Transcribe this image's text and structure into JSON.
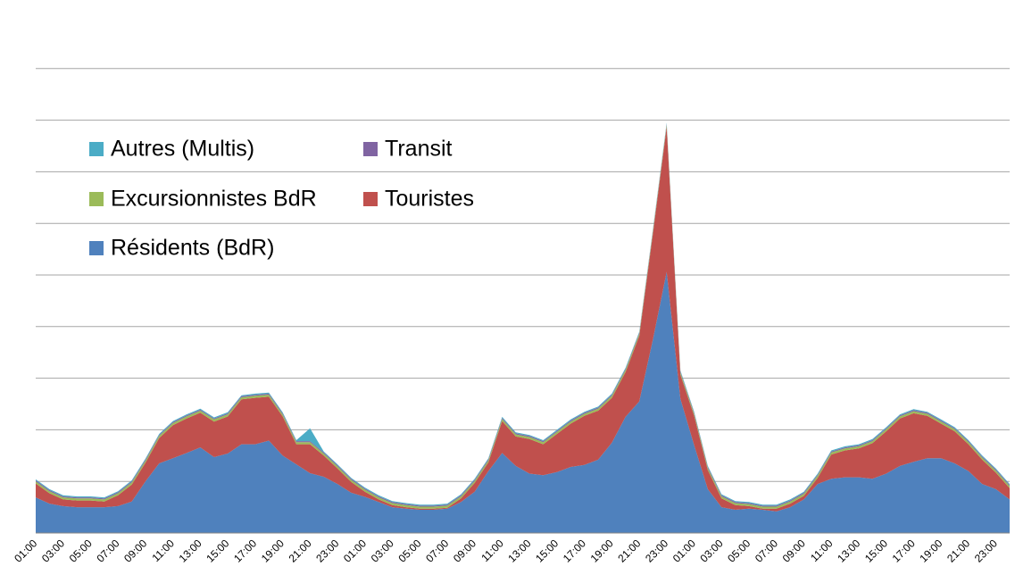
{
  "chart_data": {
    "type": "stacked_area",
    "categories": [
      "01:00",
      null,
      "03:00",
      null,
      "05:00",
      null,
      "07:00",
      null,
      "09:00",
      null,
      "11:00",
      null,
      "13:00",
      null,
      "15:00",
      null,
      "17:00",
      null,
      "19:00",
      null,
      "21:00",
      null,
      "23:00",
      null,
      "01:00",
      null,
      "03:00",
      null,
      "05:00",
      null,
      "07:00",
      null,
      "09:00",
      null,
      "11:00",
      null,
      "13:00",
      null,
      "15:00",
      null,
      "17:00",
      null,
      "19:00",
      null,
      "21:00",
      null,
      "23:00",
      null,
      "01:00",
      null,
      "03:00",
      null,
      "05:00",
      null,
      "07:00",
      null,
      "09:00",
      null,
      "11:00",
      null,
      "13:00",
      null,
      "15:00",
      null,
      "17:00",
      null,
      "19:00",
      null,
      "21:00",
      null,
      "23:00",
      null
    ],
    "series": [
      {
        "name": "Résidents (BdR)",
        "color": "#4f81bd",
        "values": [
          0.69,
          0.57,
          0.52,
          0.5,
          0.5,
          0.5,
          0.52,
          0.61,
          1.0,
          1.35,
          1.45,
          1.55,
          1.66,
          1.47,
          1.54,
          1.72,
          1.72,
          1.79,
          1.5,
          1.33,
          1.16,
          1.09,
          0.95,
          0.78,
          0.7,
          0.6,
          0.5,
          0.47,
          0.45,
          0.45,
          0.47,
          0.6,
          0.8,
          1.2,
          1.55,
          1.3,
          1.15,
          1.12,
          1.18,
          1.28,
          1.32,
          1.42,
          1.75,
          2.25,
          2.55,
          3.76,
          5.06,
          2.6,
          1.7,
          0.85,
          0.5,
          0.45,
          0.47,
          0.45,
          0.42,
          0.5,
          0.65,
          0.95,
          1.05,
          1.08,
          1.08,
          1.05,
          1.15,
          1.3,
          1.38,
          1.45,
          1.45,
          1.35,
          1.2,
          0.95,
          0.85,
          0.65
        ]
      },
      {
        "name": "Touristes",
        "color": "#c0504d",
        "values": [
          0.27,
          0.2,
          0.13,
          0.13,
          0.13,
          0.11,
          0.21,
          0.33,
          0.36,
          0.49,
          0.64,
          0.67,
          0.67,
          0.69,
          0.72,
          0.87,
          0.9,
          0.85,
          0.76,
          0.39,
          0.56,
          0.41,
          0.3,
          0.21,
          0.1,
          0.05,
          0.04,
          0.03,
          0.02,
          0.02,
          0.02,
          0.07,
          0.17,
          0.17,
          0.62,
          0.57,
          0.67,
          0.6,
          0.74,
          0.84,
          0.95,
          0.95,
          0.87,
          0.87,
          1.27,
          2.06,
          2.81,
          0.47,
          0.57,
          0.37,
          0.17,
          0.09,
          0.05,
          0.02,
          0.05,
          0.07,
          0.07,
          0.12,
          0.47,
          0.52,
          0.56,
          0.69,
          0.82,
          0.92,
          0.94,
          0.82,
          0.67,
          0.62,
          0.52,
          0.47,
          0.32,
          0.22
        ]
      },
      {
        "name": "Excursionnistes BdR",
        "color": "#9bbb59",
        "values": [
          0.04,
          0.04,
          0.04,
          0.04,
          0.04,
          0.04,
          0.04,
          0.04,
          0.04,
          0.04,
          0.04,
          0.04,
          0.04,
          0.04,
          0.04,
          0.04,
          0.04,
          0.04,
          0.04,
          0.04,
          0.04,
          0.04,
          0.04,
          0.04,
          0.04,
          0.04,
          0.04,
          0.04,
          0.04,
          0.04,
          0.04,
          0.04,
          0.04,
          0.04,
          0.04,
          0.04,
          0.04,
          0.04,
          0.04,
          0.04,
          0.04,
          0.04,
          0.04,
          0.04,
          0.04,
          0.04,
          0.04,
          0.04,
          0.04,
          0.04,
          0.04,
          0.04,
          0.04,
          0.04,
          0.04,
          0.04,
          0.04,
          0.04,
          0.04,
          0.04,
          0.04,
          0.04,
          0.04,
          0.04,
          0.04,
          0.04,
          0.04,
          0.04,
          0.04,
          0.04,
          0.04,
          0.04
        ]
      },
      {
        "name": "Transit",
        "color": "#8064a2",
        "values": [
          0.02,
          0.02,
          0.02,
          0.02,
          0.02,
          0.02,
          0.02,
          0.02,
          0.02,
          0.02,
          0.02,
          0.02,
          0.02,
          0.02,
          0.02,
          0.02,
          0.02,
          0.02,
          0.02,
          0.02,
          0.02,
          0.02,
          0.02,
          0.02,
          0.02,
          0.02,
          0.02,
          0.02,
          0.02,
          0.02,
          0.02,
          0.02,
          0.02,
          0.02,
          0.02,
          0.02,
          0.02,
          0.02,
          0.02,
          0.02,
          0.02,
          0.02,
          0.02,
          0.02,
          0.02,
          0.02,
          0.02,
          0.02,
          0.02,
          0.02,
          0.02,
          0.02,
          0.02,
          0.02,
          0.02,
          0.02,
          0.02,
          0.02,
          0.02,
          0.02,
          0.02,
          0.02,
          0.02,
          0.02,
          0.02,
          0.02,
          0.02,
          0.02,
          0.02,
          0.02,
          0.02,
          0.02
        ]
      },
      {
        "name": "Autres (Multis)",
        "color": "#4bacc6",
        "values": [
          0.02,
          0.02,
          0.02,
          0.02,
          0.02,
          0.02,
          0.02,
          0.02,
          0.02,
          0.02,
          0.02,
          0.02,
          0.02,
          0.02,
          0.02,
          0.02,
          0.02,
          0.02,
          0.02,
          0.02,
          0.25,
          0.02,
          0.02,
          0.02,
          0.02,
          0.02,
          0.02,
          0.02,
          0.02,
          0.02,
          0.02,
          0.02,
          0.02,
          0.02,
          0.02,
          0.02,
          0.02,
          0.02,
          0.02,
          0.02,
          0.02,
          0.02,
          0.02,
          0.02,
          0.02,
          0.02,
          0.02,
          0.02,
          0.02,
          0.02,
          0.02,
          0.02,
          0.02,
          0.02,
          0.02,
          0.02,
          0.02,
          0.02,
          0.02,
          0.02,
          0.02,
          0.02,
          0.02,
          0.02,
          0.02,
          0.02,
          0.02,
          0.02,
          0.02,
          0.02,
          0.02,
          0.02
        ]
      }
    ],
    "ylim": [
      0,
      10
    ],
    "yticks": [
      1,
      2,
      3,
      4,
      5,
      6,
      7,
      8,
      9
    ],
    "grid": true,
    "legend": "upper left"
  }
}
